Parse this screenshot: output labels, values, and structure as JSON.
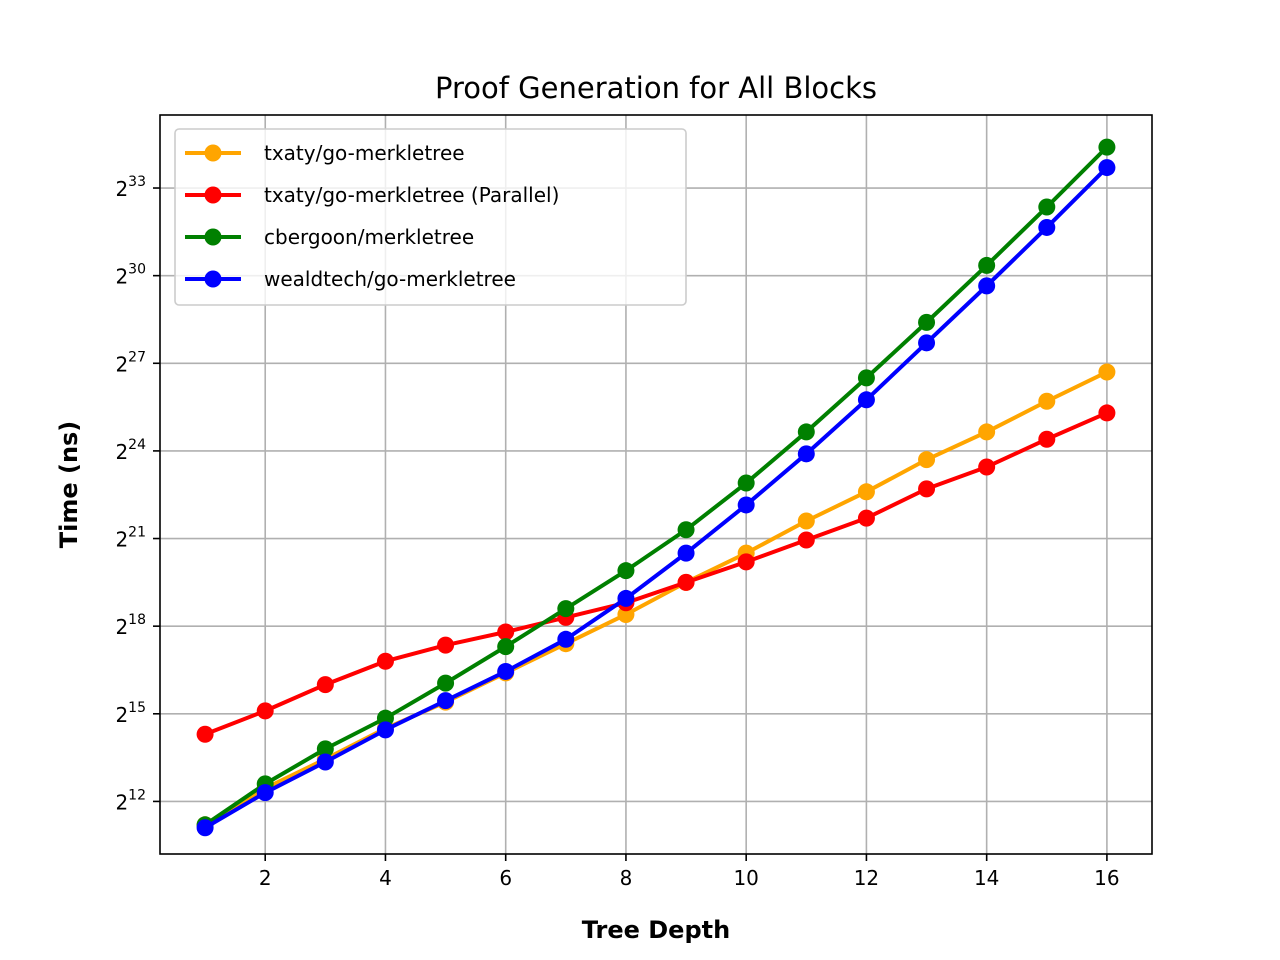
{
  "chart_data": {
    "type": "line",
    "title": "Proof Generation for All Blocks",
    "xlabel": "Tree Depth",
    "ylabel": "Time (ns)",
    "yscale": "log2",
    "xlim": [
      0.25,
      16.75
    ],
    "ylim_exp": [
      10.2,
      35.5
    ],
    "xticks": [
      2,
      4,
      6,
      8,
      10,
      12,
      14,
      16
    ],
    "xtick_labels": [
      "2",
      "4",
      "6",
      "8",
      "10",
      "12",
      "14",
      "16"
    ],
    "yticks": [
      {
        "base": "2",
        "exp": "12",
        "value_exp": 12
      },
      {
        "base": "2",
        "exp": "15",
        "value_exp": 15
      },
      {
        "base": "2",
        "exp": "18",
        "value_exp": 18
      },
      {
        "base": "2",
        "exp": "21",
        "value_exp": 21
      },
      {
        "base": "2",
        "exp": "24",
        "value_exp": 24
      },
      {
        "base": "2",
        "exp": "27",
        "value_exp": 27
      },
      {
        "base": "2",
        "exp": "30",
        "value_exp": 30
      },
      {
        "base": "2",
        "exp": "33",
        "value_exp": 33
      }
    ],
    "grid": true,
    "legend_position": "upper-left",
    "x": [
      1,
      2,
      3,
      4,
      5,
      6,
      7,
      8,
      9,
      10,
      11,
      12,
      13,
      14,
      15,
      16
    ],
    "series": [
      {
        "name": "txaty/go-merkletree",
        "color": "#ffa500",
        "y_exp": [
          11.2,
          12.45,
          13.45,
          14.5,
          15.4,
          16.4,
          17.4,
          18.4,
          19.5,
          20.5,
          21.6,
          22.6,
          23.7,
          24.65,
          25.7,
          26.7
        ]
      },
      {
        "name": "txaty/go-merkletree (Parallel)",
        "color": "#ff0000",
        "y_exp": [
          14.3,
          15.1,
          16.0,
          16.8,
          17.35,
          17.8,
          18.3,
          18.8,
          19.5,
          20.2,
          20.95,
          21.7,
          22.7,
          23.45,
          24.4,
          25.3
        ]
      },
      {
        "name": "cbergoon/merkletree",
        "color": "#008000",
        "y_exp": [
          11.2,
          12.6,
          13.8,
          14.85,
          16.05,
          17.3,
          18.6,
          19.9,
          21.3,
          22.9,
          24.65,
          26.5,
          28.4,
          30.35,
          32.35,
          34.4
        ]
      },
      {
        "name": "wealdtech/go-merkletree",
        "color": "#0000ff",
        "y_exp": [
          11.1,
          12.3,
          13.35,
          14.45,
          15.45,
          16.45,
          17.55,
          18.95,
          20.5,
          22.15,
          23.9,
          25.75,
          27.7,
          29.65,
          31.65,
          33.7
        ]
      }
    ]
  }
}
